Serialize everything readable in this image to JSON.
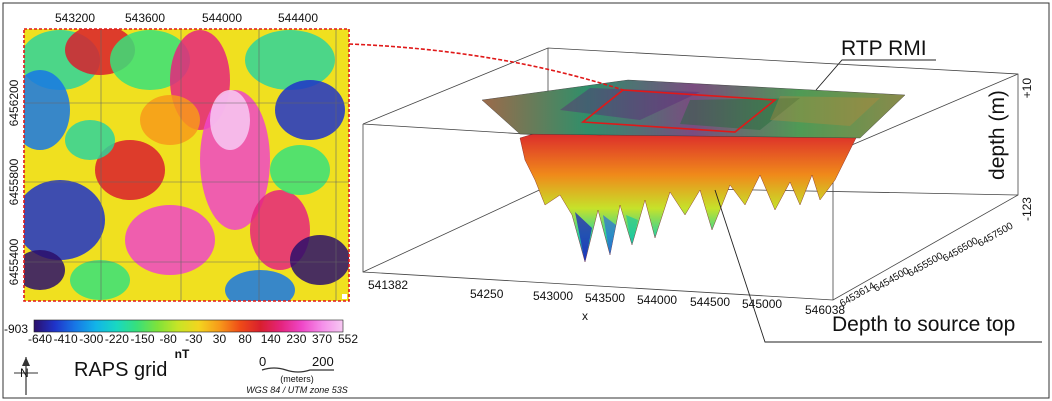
{
  "map": {
    "x_ticks": [
      "543200",
      "543600",
      "544000",
      "544400"
    ],
    "y_ticks": [
      "6456200",
      "6455800",
      "6455400"
    ]
  },
  "colorbar": {
    "min_label": "-903",
    "max_label": "552",
    "ticks": [
      "-640",
      "-410",
      "-300",
      "-220",
      "-150",
      "-80",
      "-30",
      "30",
      "80",
      "140",
      "230",
      "370"
    ],
    "unit": "nT",
    "colors": [
      "#2b0f6b",
      "#1f33c9",
      "#1777e6",
      "#12b4e8",
      "#18d8c2",
      "#38e07a",
      "#7fe23a",
      "#c8e426",
      "#f3d51f",
      "#f79a1a",
      "#ef4b17",
      "#d91f2e",
      "#e5247e",
      "#ef47c8",
      "#f58fe9",
      "#f7c9f3"
    ]
  },
  "north_label": "N",
  "grid_label": "RAPS grid",
  "scalebar": {
    "zero": "0",
    "max": "200",
    "unit": "(meters)",
    "crs": "WGS 84 / UTM zone 53S"
  },
  "block3d": {
    "surface_label": "RTP RMI",
    "depth_axis": {
      "label": "depth (m)",
      "top": "+10",
      "bottom": "-123"
    },
    "x_axis": {
      "label": "x",
      "ticks": [
        "541382",
        "54250",
        "543000",
        "543500",
        "544000",
        "544500",
        "545000",
        "546038"
      ]
    },
    "y_axis": {
      "ticks": [
        "6453614",
        "6454500",
        "6455500",
        "6456500",
        "6457500"
      ]
    },
    "source_label": "Depth to source top"
  }
}
